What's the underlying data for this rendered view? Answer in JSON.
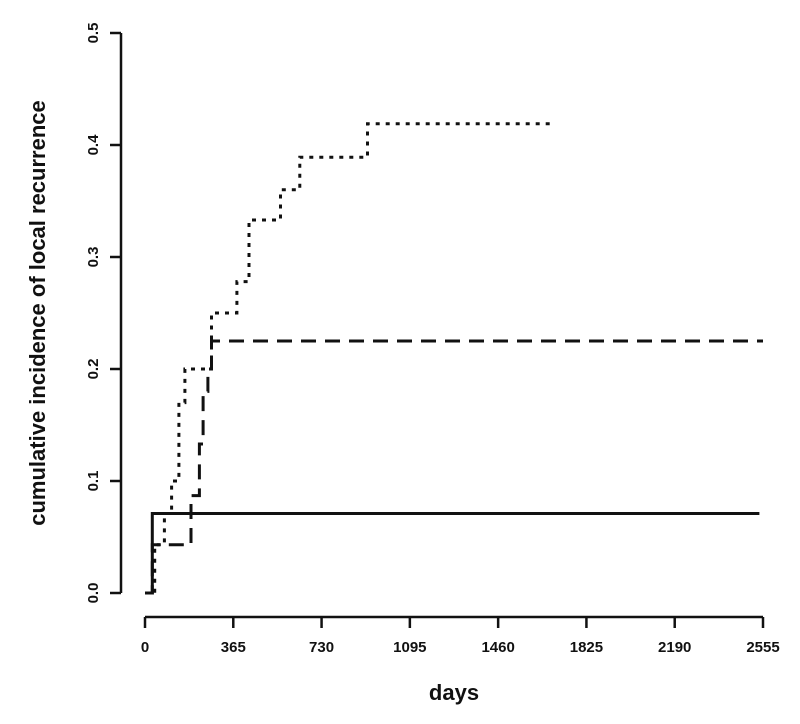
{
  "chart_data": {
    "type": "line",
    "step": true,
    "xlabel": "days",
    "ylabel": "cumulative incidence of local recurrence",
    "xlim": [
      0,
      2555
    ],
    "ylim": [
      0,
      0.5
    ],
    "xticks": [
      0,
      365,
      730,
      1095,
      1460,
      1825,
      2190,
      2555
    ],
    "yticks": [
      "0.0",
      "0.1",
      "0.2",
      "0.3",
      "0.4",
      "0.5"
    ],
    "grid": false,
    "series": [
      {
        "style": "solid",
        "x": [
          0,
          30,
          30,
          2540
        ],
        "y": [
          0,
          0,
          0.071,
          0.071
        ]
      },
      {
        "style": "dashed",
        "x": [
          0,
          30,
          30,
          190,
          190,
          225,
          225,
          240,
          240,
          260,
          260,
          275,
          275,
          2555
        ],
        "y": [
          0,
          0,
          0.043,
          0.043,
          0.087,
          0.087,
          0.133,
          0.133,
          0.18,
          0.18,
          0.2,
          0.2,
          0.225,
          0.225
        ]
      },
      {
        "style": "dotted",
        "x": [
          0,
          40,
          40,
          80,
          80,
          110,
          110,
          140,
          140,
          165,
          165,
          235,
          235,
          275,
          275,
          380,
          380,
          430,
          430,
          560,
          560,
          640,
          640,
          920,
          920,
          1680
        ],
        "y": [
          0,
          0,
          0.043,
          0.043,
          0.071,
          0.071,
          0.1,
          0.1,
          0.17,
          0.17,
          0.2,
          0.2,
          0.2,
          0.2,
          0.25,
          0.25,
          0.278,
          0.278,
          0.333,
          0.333,
          0.36,
          0.36,
          0.389,
          0.389,
          0.419,
          0.419
        ]
      }
    ]
  }
}
